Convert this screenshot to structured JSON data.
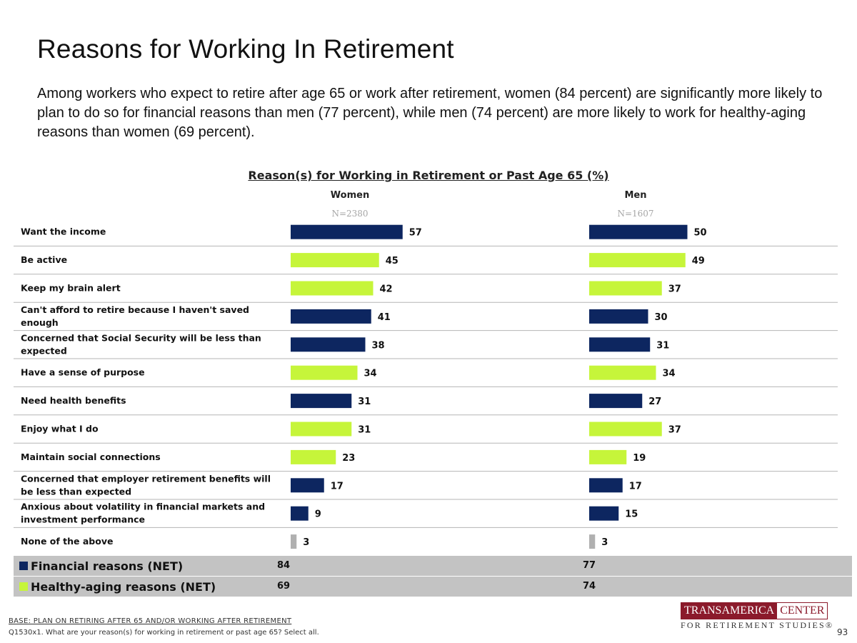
{
  "title": "Reasons for Working In Retirement",
  "subtitle": "Among workers who expect to retire after age 65 or work after retirement, women (84 percent) are significantly more likely to plan to do so for financial reasons than men (77 percent), while men (74 percent) are more likely to work for healthy-aging reasons than women (69 percent).",
  "colors": {
    "financial": "#0d2660",
    "healthy": "#c6f53a",
    "none": "#b0b0b0"
  },
  "chart_data": {
    "type": "bar",
    "title": "Reason(s) for Working in Retirement or Past Age 65 (%)",
    "groups": [
      {
        "name": "Women",
        "n": "N=2380"
      },
      {
        "name": "Men",
        "n": "N=1607"
      }
    ],
    "categories": [
      "Want the income",
      "Be active",
      "Keep my brain alert",
      "Can't afford to retire because I haven't saved enough",
      "Concerned that Social Security will be less than expected",
      "Have a sense of purpose",
      "Need health benefits",
      "Enjoy what I do",
      "Maintain social connections",
      "Concerned that employer retirement benefits will be less than expected",
      "Anxious about volatility in financial markets and investment performance",
      "None of the above"
    ],
    "category_type": [
      "financial",
      "healthy",
      "healthy",
      "financial",
      "financial",
      "healthy",
      "financial",
      "healthy",
      "healthy",
      "financial",
      "financial",
      "none"
    ],
    "series": [
      {
        "name": "Women",
        "values": [
          57,
          45,
          42,
          41,
          38,
          34,
          31,
          31,
          23,
          17,
          9,
          3
        ]
      },
      {
        "name": "Men",
        "values": [
          50,
          49,
          37,
          30,
          31,
          34,
          27,
          37,
          19,
          17,
          15,
          3
        ]
      }
    ],
    "xlim": [
      0,
      100
    ],
    "nets": [
      {
        "label": "Financial reasons (NET)",
        "type": "financial",
        "women": 84,
        "men": 77
      },
      {
        "label": "Healthy-aging reasons (NET)",
        "type": "healthy",
        "women": 69,
        "men": 74
      }
    ]
  },
  "footer": {
    "base": "BASE: PLAN ON RETIRING AFTER 65 AND/OR WORKING AFTER RETIREMENT",
    "question": "Q1530x1. What are your reason(s) for working in retirement or past age 65? Select all.",
    "page": "93"
  },
  "logo": {
    "brand": "TRANSAMERICA",
    "center": "CENTER",
    "sub": "FOR RETIREMENT STUDIES®"
  }
}
